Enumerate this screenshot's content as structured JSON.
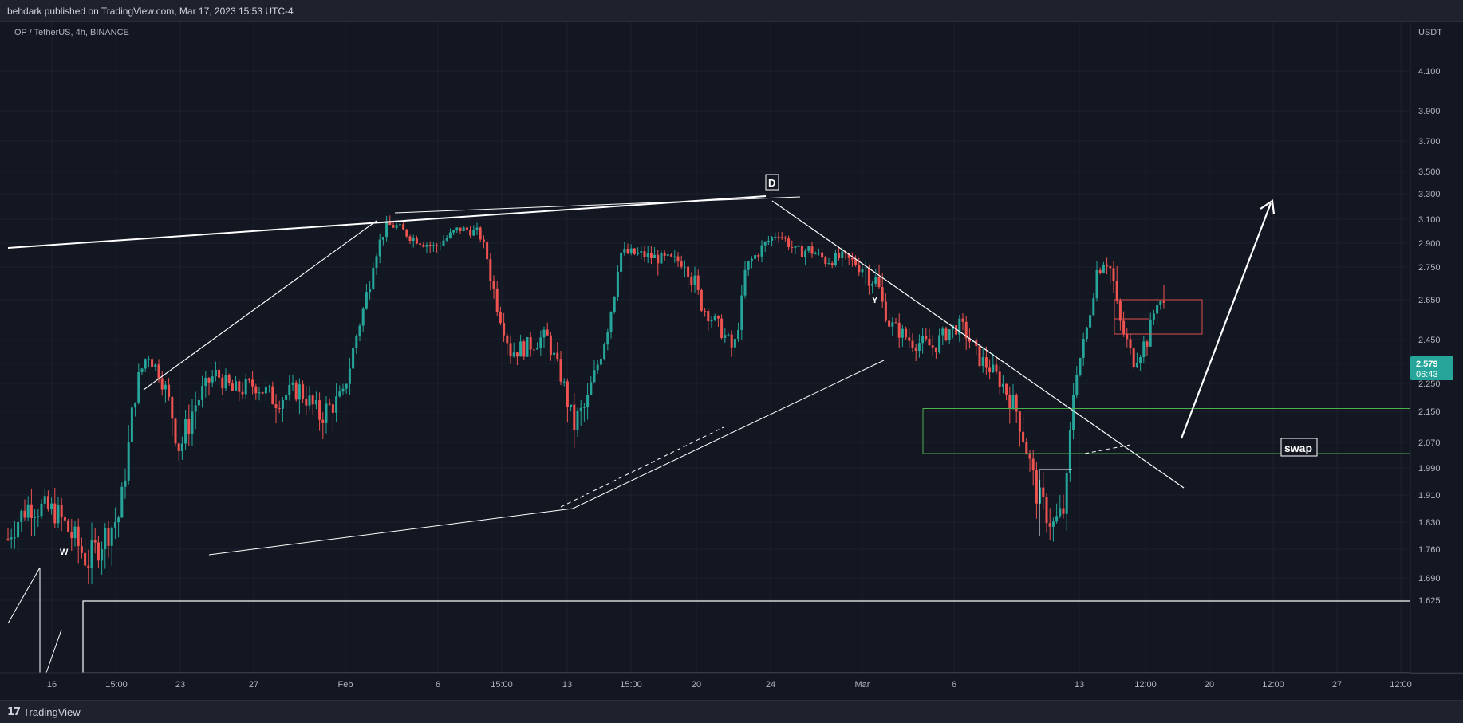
{
  "header": {
    "published": "behdark published on TradingView.com, Mar 17, 2023 15:53 UTC-4"
  },
  "footer": {
    "brand": "TradingView",
    "logo_icon": "tradingview-logo-icon"
  },
  "colors": {
    "background": "#131722",
    "up": "#26a69a",
    "down": "#ef5350",
    "drawing": "#ffffff",
    "green_zone": "#4caf50",
    "red_box": "#e05050"
  },
  "chart_data": {
    "type": "candlestick",
    "symbol": "OP / TetherUS, 4h, BINANCE",
    "currency": "USDT",
    "last_price": "2.579",
    "countdown": "06:43",
    "y_ticks": [
      "4.100",
      "3.900",
      "3.700",
      "3.500",
      "3.300",
      "3.100",
      "2.900",
      "2.750",
      "2.650",
      "2.450",
      "2.350",
      "2.250",
      "2.150",
      "2.070",
      "1.990",
      "1.910",
      "1.830",
      "1.760",
      "1.690",
      "1.625"
    ],
    "x_ticks": [
      "16",
      "15:00",
      "23",
      "27",
      "Feb",
      "6",
      "15:00",
      "13",
      "15:00",
      "20",
      "24",
      "Mar",
      "6",
      "13",
      "12:00",
      "20",
      "12:00",
      "27",
      "12:00"
    ],
    "annotations": [
      "W",
      "D",
      "Y",
      "swap"
    ],
    "grid": true,
    "ohlc_path": [
      [
        0,
        1.73
      ],
      [
        14,
        1.81
      ],
      [
        36,
        1.88
      ],
      [
        70,
        1.86
      ],
      [
        110,
        1.73
      ],
      [
        150,
        1.85
      ],
      [
        172,
        2.26
      ],
      [
        185,
        2.4
      ],
      [
        200,
        2.3
      ],
      [
        225,
        2.05
      ],
      [
        246,
        2.18
      ],
      [
        270,
        2.3
      ],
      [
        292,
        2.22
      ],
      [
        320,
        2.25
      ],
      [
        345,
        2.19
      ],
      [
        375,
        2.23
      ],
      [
        400,
        2.14
      ],
      [
        430,
        2.2
      ],
      [
        446,
        2.46
      ],
      [
        470,
        2.82
      ],
      [
        485,
        3.05
      ],
      [
        498,
        3.04
      ],
      [
        515,
        2.95
      ],
      [
        545,
        2.87
      ],
      [
        575,
        3.02
      ],
      [
        600,
        2.99
      ],
      [
        615,
        2.73
      ],
      [
        640,
        2.4
      ],
      [
        660,
        2.42
      ],
      [
        685,
        2.47
      ],
      [
        700,
        2.32
      ],
      [
        718,
        2.11
      ],
      [
        735,
        2.17
      ],
      [
        760,
        2.48
      ],
      [
        778,
        2.84
      ],
      [
        800,
        2.83
      ],
      [
        830,
        2.8
      ],
      [
        860,
        2.78
      ],
      [
        880,
        2.62
      ],
      [
        900,
        2.52
      ],
      [
        920,
        2.4
      ],
      [
        935,
        2.75
      ],
      [
        955,
        2.87
      ],
      [
        975,
        2.99
      ],
      [
        998,
        2.84
      ],
      [
        1015,
        2.86
      ],
      [
        1035,
        2.79
      ],
      [
        1055,
        2.81
      ],
      [
        1080,
        2.76
      ],
      [
        1100,
        2.7
      ],
      [
        1115,
        2.53
      ],
      [
        1140,
        2.45
      ],
      [
        1170,
        2.42
      ],
      [
        1190,
        2.5
      ],
      [
        1205,
        2.52
      ],
      [
        1225,
        2.38
      ],
      [
        1245,
        2.31
      ],
      [
        1260,
        2.23
      ],
      [
        1280,
        2.12
      ],
      [
        1300,
        1.91
      ],
      [
        1320,
        1.82
      ],
      [
        1335,
        1.87
      ],
      [
        1348,
        2.3
      ],
      [
        1360,
        2.45
      ],
      [
        1372,
        2.72
      ],
      [
        1385,
        2.8
      ],
      [
        1395,
        2.72
      ],
      [
        1405,
        2.52
      ],
      [
        1420,
        2.36
      ],
      [
        1438,
        2.45
      ],
      [
        1452,
        2.67
      ],
      [
        1463,
        2.58
      ]
    ]
  }
}
